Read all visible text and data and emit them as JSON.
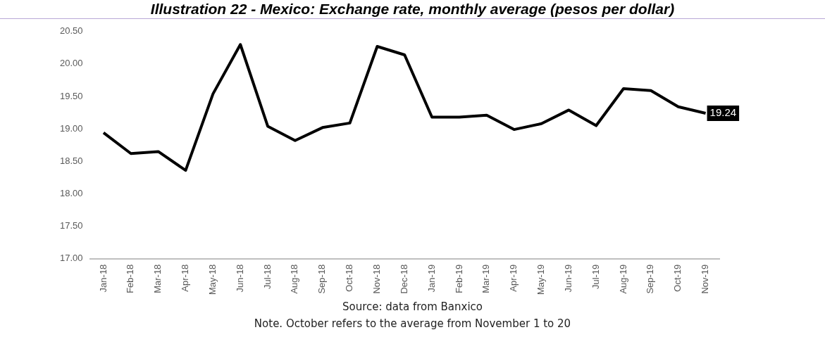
{
  "chart_data": {
    "type": "line",
    "title": "Illustration 22 - Mexico: Exchange rate, monthly average (pesos per dollar)",
    "categories": [
      "Jan-18",
      "Feb-18",
      "Mar-18",
      "Apr-18",
      "May-18",
      "Jun-18",
      "Jul-18",
      "Aug-18",
      "Sep-18",
      "Oct-18",
      "Nov-18",
      "Dec-18",
      "Jan-19",
      "Feb-19",
      "Mar-19",
      "Apr-19",
      "May-19",
      "Jun-19",
      "Jul-19",
      "Aug-19",
      "Sep-19",
      "Oct-19",
      "Nov-19"
    ],
    "series": [
      {
        "color": "#000000",
        "values": [
          18.94,
          18.62,
          18.65,
          18.36,
          19.54,
          20.3,
          19.04,
          18.82,
          19.02,
          19.09,
          20.27,
          20.14,
          19.18,
          19.18,
          19.21,
          18.99,
          19.08,
          19.29,
          19.05,
          19.62,
          19.59,
          19.34,
          19.24
        ],
        "value_labels": [
          null,
          null,
          null,
          null,
          null,
          null,
          null,
          null,
          null,
          null,
          null,
          null,
          null,
          null,
          null,
          null,
          null,
          null,
          null,
          null,
          null,
          null,
          "19.24"
        ]
      }
    ],
    "ylim": [
      17,
      20.5
    ],
    "yticks": [
      {
        "value": 17,
        "label": "17.00"
      },
      {
        "value": 17.5,
        "label": "17.50"
      },
      {
        "value": 18,
        "label": "18.00"
      },
      {
        "value": 18.5,
        "label": "18.50"
      },
      {
        "value": 19,
        "label": "19.00"
      },
      {
        "value": 19.5,
        "label": "19.50"
      },
      {
        "value": 20,
        "label": "20.00"
      },
      {
        "value": 20.5,
        "label": "20.50"
      }
    ],
    "grid": false,
    "legend": false,
    "marker": "none",
    "line_style": "solid",
    "annotations": [
      "Source: data from Banxico",
      "Note. October refers to the average from November 1 to 20"
    ]
  }
}
